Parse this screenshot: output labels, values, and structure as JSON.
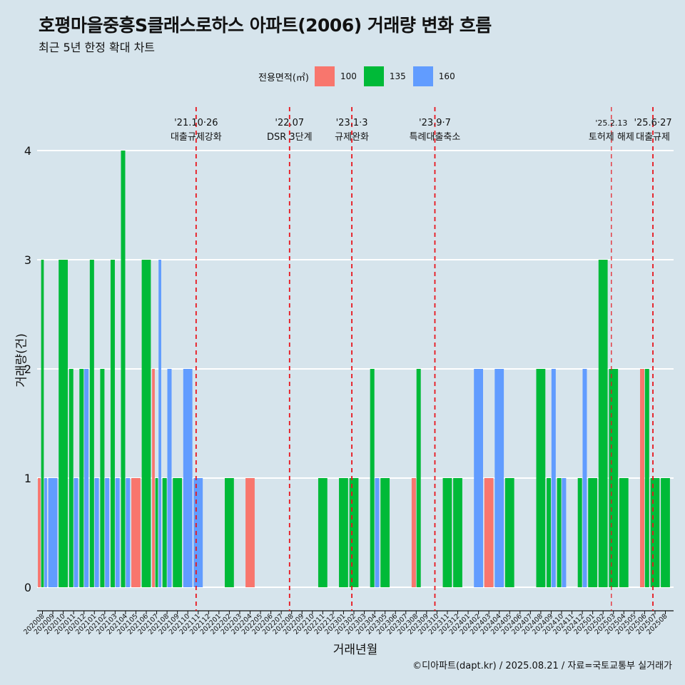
{
  "title": "호평마을중흥S클래스로하스 아파트(2006) 거래량 변화 흐름",
  "subtitle": "최근 5년 한정 확대 차트",
  "caption": "©디아파트(dapt.kr) / 2025.08.21 / 자료=국토교통부 실거래가",
  "colors": {
    "100": "#f8766d",
    "135": "#00ba38",
    "160": "#619cff",
    "background": "#d6e4ec",
    "grid": "#ffffff",
    "event_line": "#e8141c"
  },
  "legend": {
    "title": "전용면적(㎡)",
    "items": [
      {
        "label": "100",
        "color": "#f8766d"
      },
      {
        "label": "135",
        "color": "#00ba38"
      },
      {
        "label": "160",
        "color": "#619cff"
      }
    ]
  },
  "chart_data": {
    "type": "bar",
    "title": "호평마을중흥S클래스로하스 아파트(2006) 거래량 변화 흐름",
    "subtitle": "최근 5년 한정 확대 차트",
    "xlabel": "거래년월",
    "ylabel": "거래량(건)",
    "ylim": [
      0,
      4
    ],
    "yticks": [
      0,
      1,
      2,
      3,
      4
    ],
    "grid": true,
    "legend_position": "top",
    "categories": [
      "202008",
      "202009",
      "202010",
      "202011",
      "202012",
      "202101",
      "202102",
      "202103",
      "202104",
      "202105",
      "202106",
      "202107",
      "202108",
      "202109",
      "202110",
      "202111",
      "202112",
      "202201",
      "202202",
      "202203",
      "202204",
      "202205",
      "202206",
      "202207",
      "202208",
      "202209",
      "202210",
      "202211",
      "202212",
      "202301",
      "202302",
      "202303",
      "202304",
      "202305",
      "202306",
      "202307",
      "202308",
      "202309",
      "202310",
      "202311",
      "202312",
      "202401",
      "202402",
      "202403",
      "202404",
      "202405",
      "202406",
      "202407",
      "202408",
      "202409",
      "202410",
      "202411",
      "202412",
      "202501",
      "202502",
      "202503",
      "202504",
      "202505",
      "202506",
      "202507",
      "202508"
    ],
    "series": [
      {
        "name": "100",
        "color": "#f8766d",
        "values": [
          1,
          0,
          0,
          0,
          0,
          0,
          0,
          0,
          0,
          1,
          0,
          2,
          0,
          0,
          0,
          0,
          0,
          0,
          0,
          0,
          1,
          0,
          0,
          0,
          0,
          0,
          0,
          0,
          0,
          0,
          0,
          0,
          0,
          0,
          0,
          0,
          1,
          0,
          0,
          0,
          0,
          0,
          0,
          1,
          0,
          0,
          0,
          0,
          0,
          0,
          0,
          0,
          0,
          0,
          0,
          0,
          0,
          0,
          2,
          0,
          0
        ]
      },
      {
        "name": "135",
        "color": "#00ba38",
        "values": [
          3,
          0,
          3,
          2,
          2,
          3,
          2,
          3,
          4,
          0,
          3,
          1,
          1,
          1,
          0,
          0,
          0,
          0,
          1,
          0,
          0,
          0,
          0,
          0,
          0,
          0,
          0,
          1,
          0,
          1,
          1,
          0,
          2,
          1,
          0,
          0,
          2,
          0,
          0,
          1,
          1,
          0,
          0,
          0,
          0,
          1,
          0,
          0,
          2,
          1,
          1,
          0,
          1,
          1,
          3,
          2,
          1,
          0,
          2,
          1,
          1
        ]
      },
      {
        "name": "160",
        "color": "#619cff",
        "values": [
          1,
          1,
          0,
          1,
          2,
          1,
          1,
          1,
          1,
          0,
          0,
          3,
          2,
          0,
          2,
          1,
          0,
          0,
          0,
          0,
          0,
          0,
          0,
          0,
          0,
          0,
          0,
          0,
          0,
          0,
          0,
          0,
          1,
          0,
          0,
          0,
          0,
          0,
          0,
          0,
          0,
          0,
          2,
          0,
          2,
          0,
          0,
          0,
          0,
          2,
          1,
          0,
          2,
          0,
          0,
          0,
          0,
          0,
          0,
          0,
          0
        ]
      }
    ],
    "events": [
      {
        "date": "'21.10·26",
        "label": "대출규제강화",
        "x_index": 14.8
      },
      {
        "date": "'22.07",
        "label": "DSR 3단계",
        "x_index": 23.8
      },
      {
        "date": "'23.1·3",
        "label": "규제완화",
        "x_index": 29.8
      },
      {
        "date": "'23.9·7",
        "label": "특례대출축소",
        "x_index": 37.8
      },
      {
        "date": "'25.2.13",
        "label": "토허제 해제",
        "x_index": 54.8
      },
      {
        "date": "'25.6·27",
        "label": "대출규제",
        "x_index": 58.8
      }
    ]
  }
}
